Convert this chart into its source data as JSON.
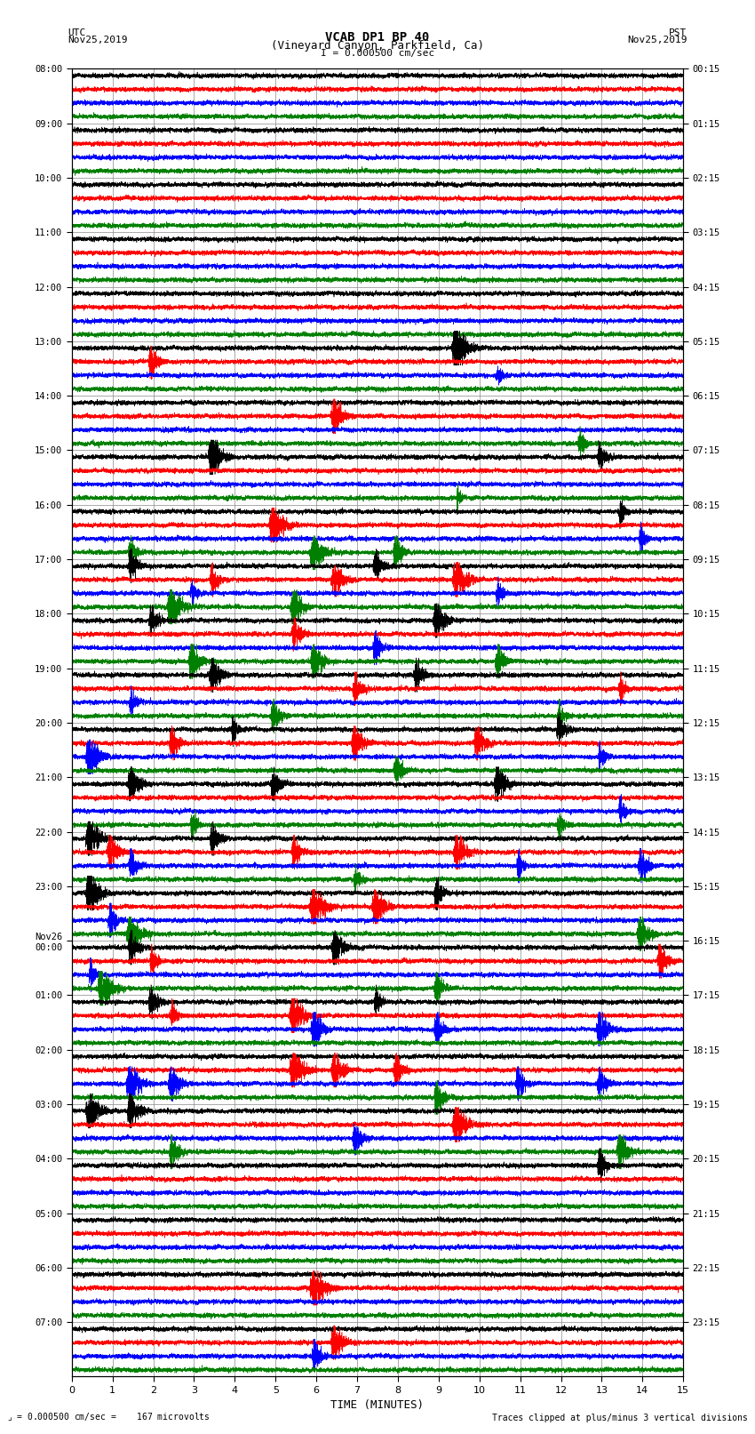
{
  "title_line1": "VCAB DP1 BP 40",
  "title_line2": "(Vineyard Canyon, Parkfield, Ca)",
  "title_line3": "I = 0.000500 cm/sec",
  "left_label_line1": "UTC",
  "left_label_line2": "Nov25,2019",
  "right_label_line1": "PST",
  "right_label_line2": "Nov25,2019",
  "xlabel": "TIME (MINUTES)",
  "bottom_left_note": "= 0.000500 cm/sec =    167 microvolts",
  "bottom_right_note": "Traces clipped at plus/minus 3 vertical divisions",
  "utc_times": [
    "08:00",
    "09:00",
    "10:00",
    "11:00",
    "12:00",
    "13:00",
    "14:00",
    "15:00",
    "16:00",
    "17:00",
    "18:00",
    "19:00",
    "20:00",
    "21:00",
    "22:00",
    "23:00",
    "Nov26\n00:00",
    "01:00",
    "02:00",
    "03:00",
    "04:00",
    "05:00",
    "06:00",
    "07:00"
  ],
  "pst_times": [
    "00:15",
    "01:15",
    "02:15",
    "03:15",
    "04:15",
    "05:15",
    "06:15",
    "07:15",
    "08:15",
    "09:15",
    "10:15",
    "11:15",
    "12:15",
    "13:15",
    "14:15",
    "15:15",
    "16:15",
    "17:15",
    "18:15",
    "19:15",
    "20:15",
    "21:15",
    "22:15",
    "23:15"
  ],
  "trace_colors": [
    "black",
    "red",
    "blue",
    "green"
  ],
  "num_hour_rows": 24,
  "traces_per_row": 4,
  "time_minutes": 15,
  "x_ticks": [
    0,
    1,
    2,
    3,
    4,
    5,
    6,
    7,
    8,
    9,
    10,
    11,
    12,
    13,
    14,
    15
  ],
  "bg_color": "white",
  "grid_color": "#888888"
}
